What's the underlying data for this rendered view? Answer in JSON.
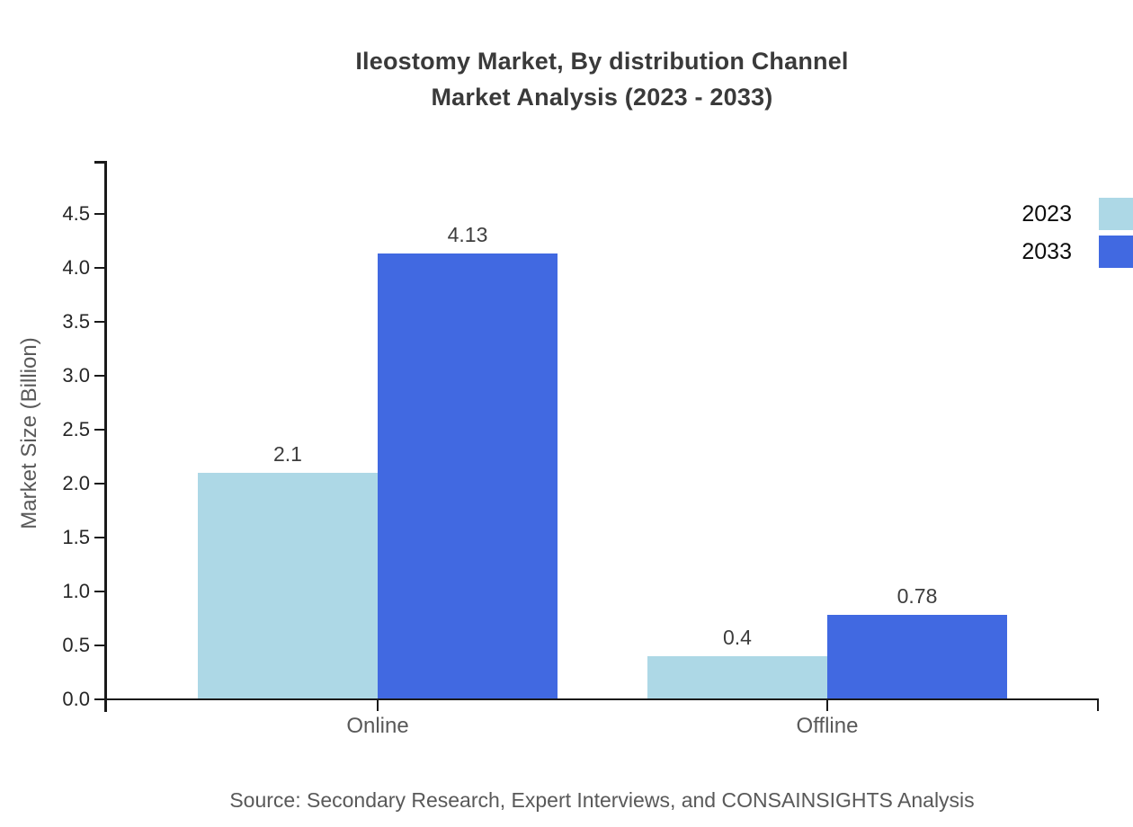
{
  "title": {
    "line1": "Ileostomy Market, By distribution Channel",
    "line2": "Market Analysis (2023 - 2033)"
  },
  "source_note": "Source: Secondary Research, Expert Interviews, and CONSAINSIGHTS Analysis",
  "chart_data": {
    "type": "bar",
    "title": "Ileostomy Market, By distribution Channel Market Analysis (2023 - 2033)",
    "categories": [
      "Online",
      "Offline"
    ],
    "series": [
      {
        "name": "2023",
        "color": "#ADD8E6",
        "values": [
          2.1,
          0.4
        ],
        "value_labels": [
          "2.1",
          "0.4"
        ]
      },
      {
        "name": "2033",
        "color": "#4169E1",
        "values": [
          4.13,
          0.78
        ],
        "value_labels": [
          "4.13",
          "0.78"
        ]
      }
    ],
    "xlabel": "",
    "ylabel": "Market Size (Billion)",
    "ylim": [
      0,
      4.75
    ],
    "ytick_step": 0.5,
    "ytick_labels": [
      "0.0",
      "0.5",
      "1.0",
      "1.5",
      "2.0",
      "2.5",
      "3.0",
      "3.5",
      "4.0",
      "4.5"
    ],
    "grid": false,
    "legend": {
      "entries": [
        "2023",
        "2033"
      ],
      "position": "top-right-outside"
    }
  },
  "colors": {
    "background": "#ffffff",
    "axis": "#1a1a1a",
    "title_text": "#3a3a3a",
    "tick_text": "#262626",
    "value_text": "#3d3d3d",
    "muted_text": "#595959",
    "legend_text": "#0d0d0d",
    "series_2023": "#ADD8E6",
    "series_2033": "#4169E1"
  }
}
